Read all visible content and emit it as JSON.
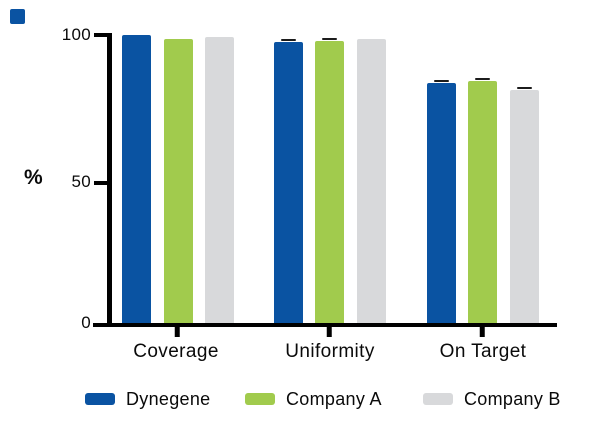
{
  "decoration": {
    "corner_square_color": "#0A53A2"
  },
  "chart_data": {
    "type": "bar",
    "title": "",
    "xlabel": "",
    "ylabel": "%",
    "ylim": [
      0,
      100
    ],
    "yticks": [
      0,
      50,
      100
    ],
    "ytick_labels": [
      "0",
      "50",
      "100"
    ],
    "grid": false,
    "legend_position": "bottom",
    "categories": [
      "Coverage",
      "Uniformity",
      "On Target"
    ],
    "series": [
      {
        "name": "Dynegene",
        "color": "#0A53A2",
        "values": [
          100,
          97.4,
          83.2
        ],
        "errors": [
          0,
          0.6,
          0.7
        ]
      },
      {
        "name": "Company A",
        "color": "#A1CB4D",
        "values": [
          98.6,
          97.8,
          84.0
        ],
        "errors": [
          0,
          0.6,
          0.7
        ]
      },
      {
        "name": "Company B",
        "color": "#D8D9DB",
        "values": [
          99.4,
          98.6,
          80.9
        ],
        "errors": [
          0,
          0,
          0.7
        ]
      }
    ]
  }
}
